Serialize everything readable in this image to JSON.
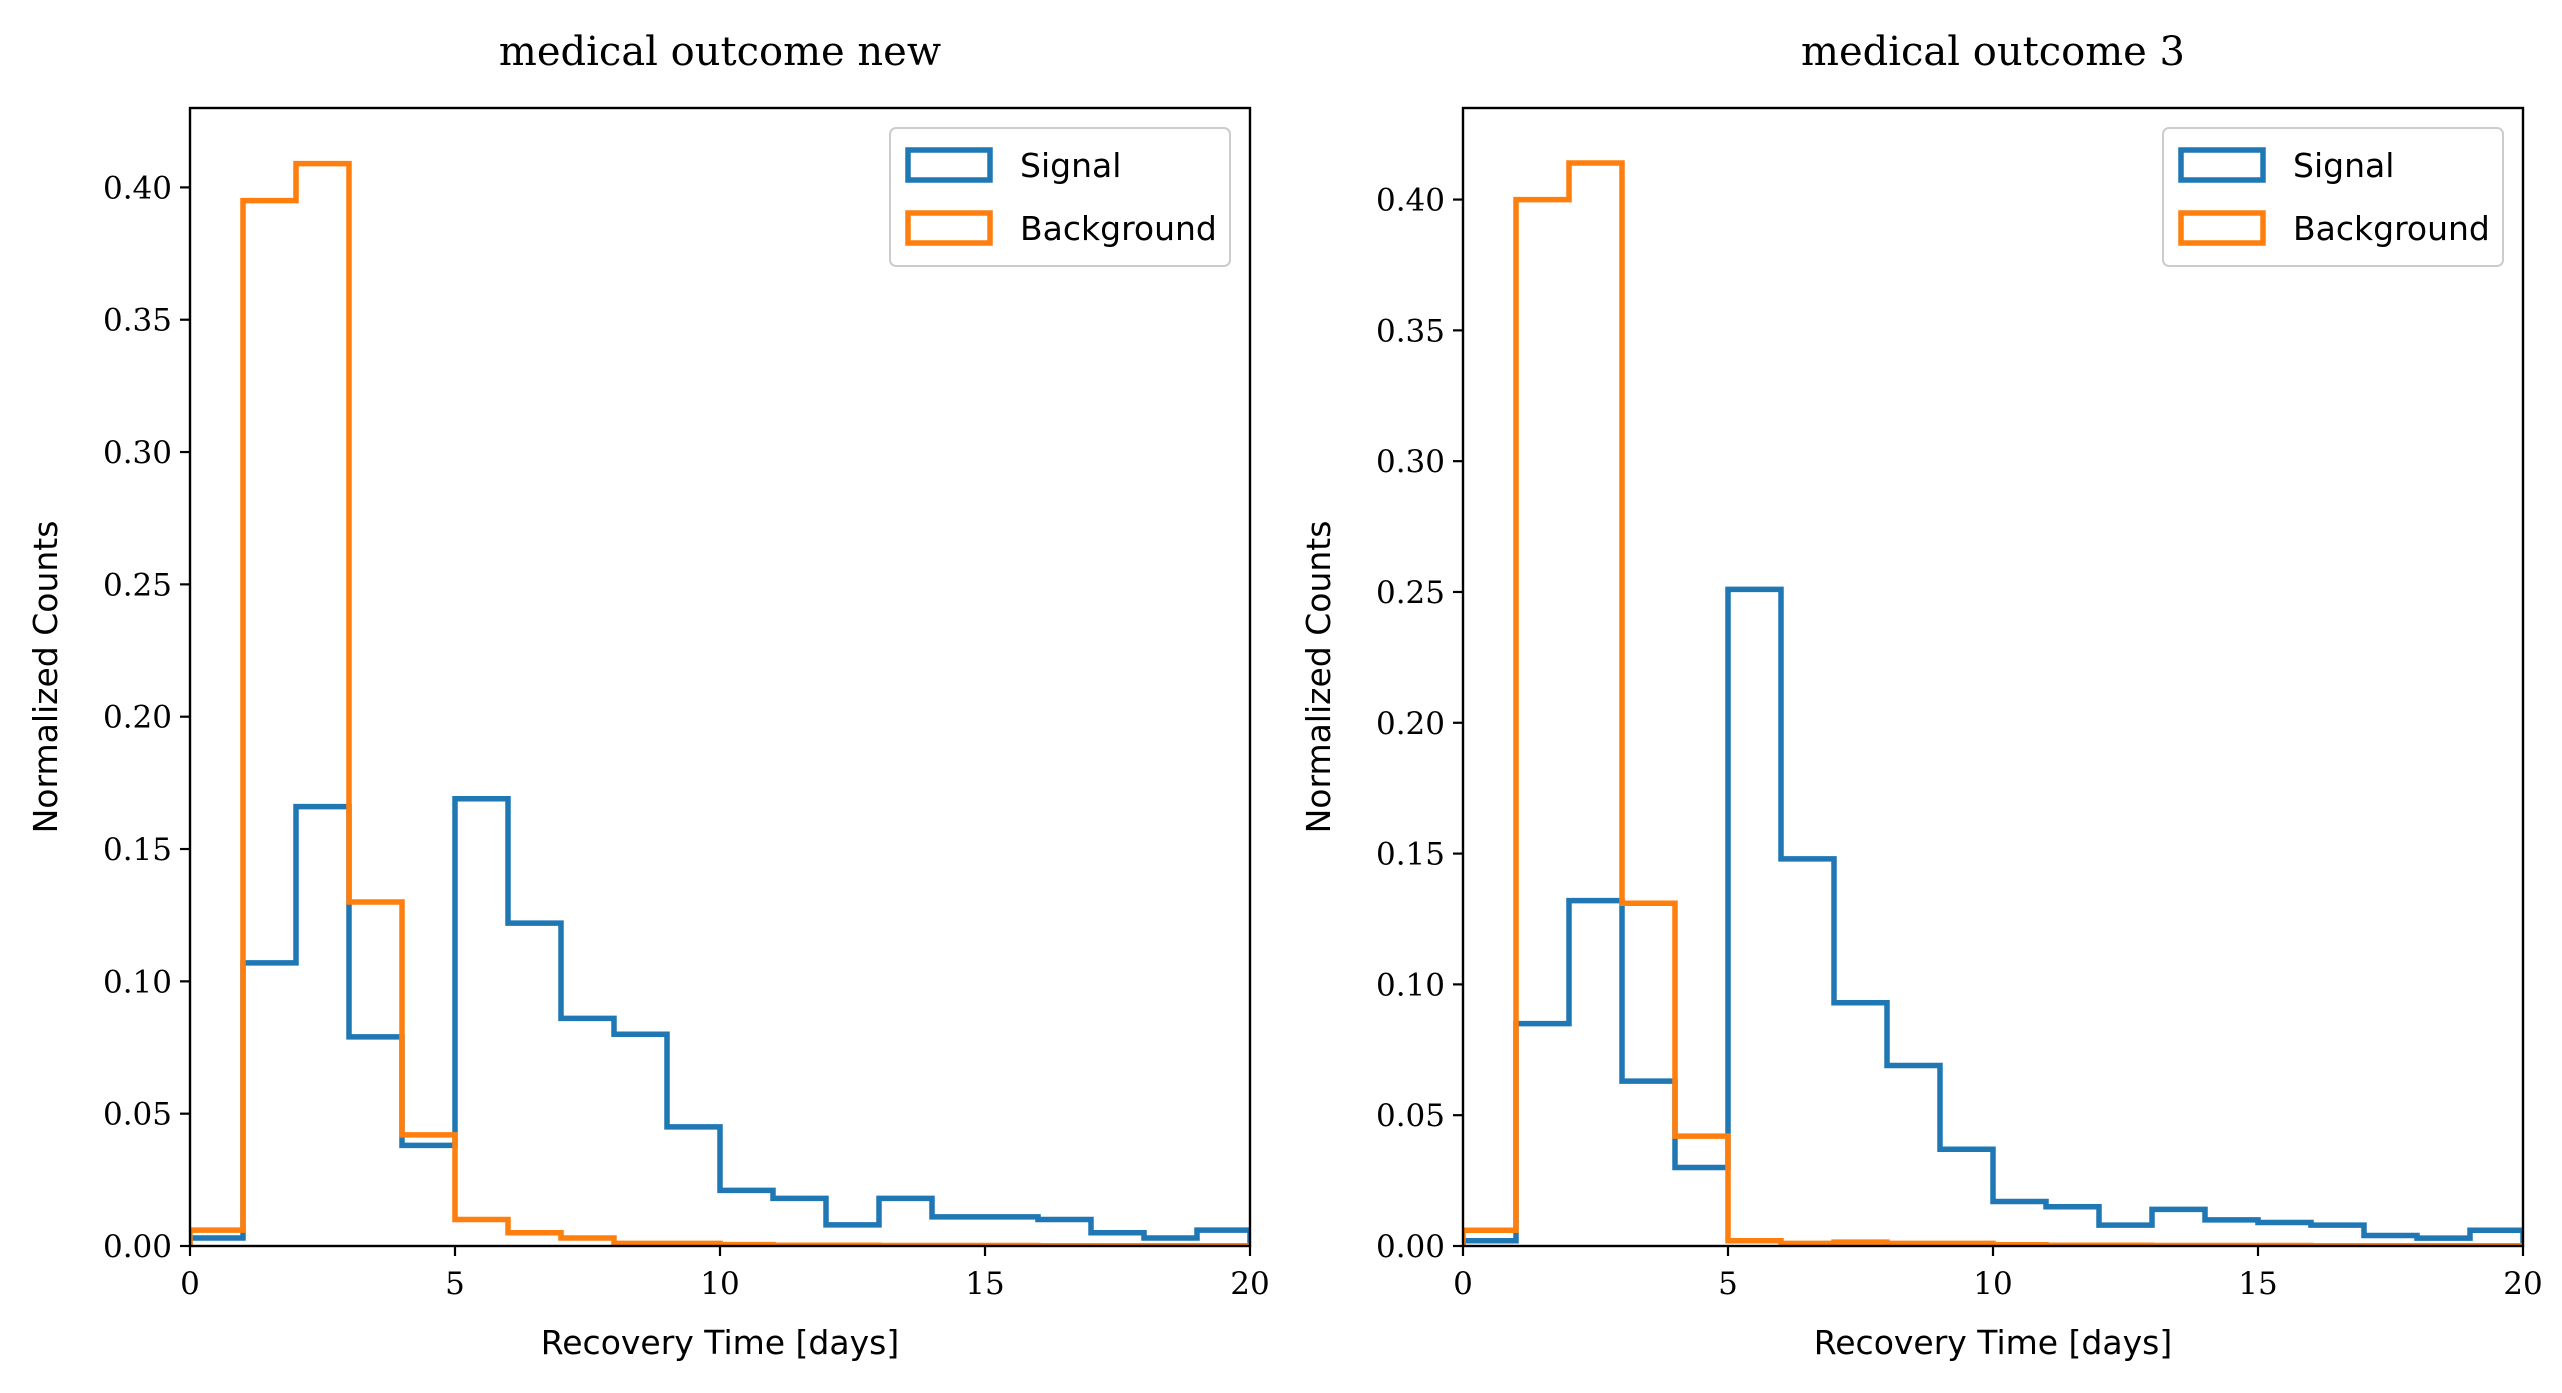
{
  "chart_data": [
    {
      "type": "histogram-step",
      "title": "medical outcome new",
      "xlabel": "Recovery Time [days]",
      "ylabel": "Normalized Counts",
      "xlim": [
        0,
        20
      ],
      "ylim": [
        0,
        0.43
      ],
      "xticks": [
        0,
        5,
        10,
        15,
        20
      ],
      "yticks": [
        0.0,
        0.05,
        0.1,
        0.15,
        0.2,
        0.25,
        0.3,
        0.35,
        0.4
      ],
      "xtick_labels": [
        "0",
        "5",
        "10",
        "15",
        "20"
      ],
      "ytick_labels": [
        "0.00",
        "0.05",
        "0.10",
        "0.15",
        "0.20",
        "0.25",
        "0.30",
        "0.35",
        "0.40"
      ],
      "grid": false,
      "legend_position": "top-right",
      "bin_edges": [
        0,
        1,
        2,
        3,
        4,
        5,
        6,
        7,
        8,
        9,
        10,
        11,
        12,
        13,
        14,
        15,
        16,
        17,
        18,
        19,
        20
      ],
      "series": [
        {
          "name": "Signal",
          "color": "#1f77b4",
          "values": [
            0.003,
            0.107,
            0.166,
            0.079,
            0.038,
            0.169,
            0.122,
            0.086,
            0.08,
            0.045,
            0.021,
            0.018,
            0.008,
            0.018,
            0.011,
            0.011,
            0.01,
            0.005,
            0.003,
            0.006
          ]
        },
        {
          "name": "Background",
          "color": "#ff7f0e",
          "values": [
            0.006,
            0.395,
            0.409,
            0.13,
            0.042,
            0.01,
            0.005,
            0.003,
            0.001,
            0.001,
            0.0005,
            0.0003,
            0.0003,
            0.0002,
            0.0002,
            0.0002,
            0.0001,
            0.0001,
            0.0001,
            0.0001
          ]
        }
      ]
    },
    {
      "type": "histogram-step",
      "title": "medical outcome 3",
      "xlabel": "Recovery Time [days]",
      "ylabel": "Normalized Counts",
      "xlim": [
        0,
        20
      ],
      "ylim": [
        0,
        0.435
      ],
      "xticks": [
        0,
        5,
        10,
        15,
        20
      ],
      "yticks": [
        0.0,
        0.05,
        0.1,
        0.15,
        0.2,
        0.25,
        0.3,
        0.35,
        0.4
      ],
      "xtick_labels": [
        "0",
        "5",
        "10",
        "15",
        "20"
      ],
      "ytick_labels": [
        "0.00",
        "0.05",
        "0.10",
        "0.15",
        "0.20",
        "0.25",
        "0.30",
        "0.35",
        "0.40"
      ],
      "grid": false,
      "legend_position": "top-right",
      "bin_edges": [
        0,
        1,
        2,
        3,
        4,
        5,
        6,
        7,
        8,
        9,
        10,
        11,
        12,
        13,
        14,
        15,
        16,
        17,
        18,
        19,
        20
      ],
      "series": [
        {
          "name": "Signal",
          "color": "#1f77b4",
          "values": [
            0.002,
            0.085,
            0.132,
            0.063,
            0.03,
            0.251,
            0.148,
            0.093,
            0.069,
            0.037,
            0.017,
            0.015,
            0.008,
            0.014,
            0.01,
            0.009,
            0.008,
            0.004,
            0.003,
            0.006
          ]
        },
        {
          "name": "Background",
          "color": "#ff7f0e",
          "values": [
            0.006,
            0.4,
            0.414,
            0.131,
            0.042,
            0.002,
            0.001,
            0.0015,
            0.001,
            0.001,
            0.0005,
            0.0003,
            0.0003,
            0.0002,
            0.0002,
            0.0002,
            0.0001,
            0.0001,
            0.0001,
            0.0001
          ]
        }
      ]
    }
  ]
}
